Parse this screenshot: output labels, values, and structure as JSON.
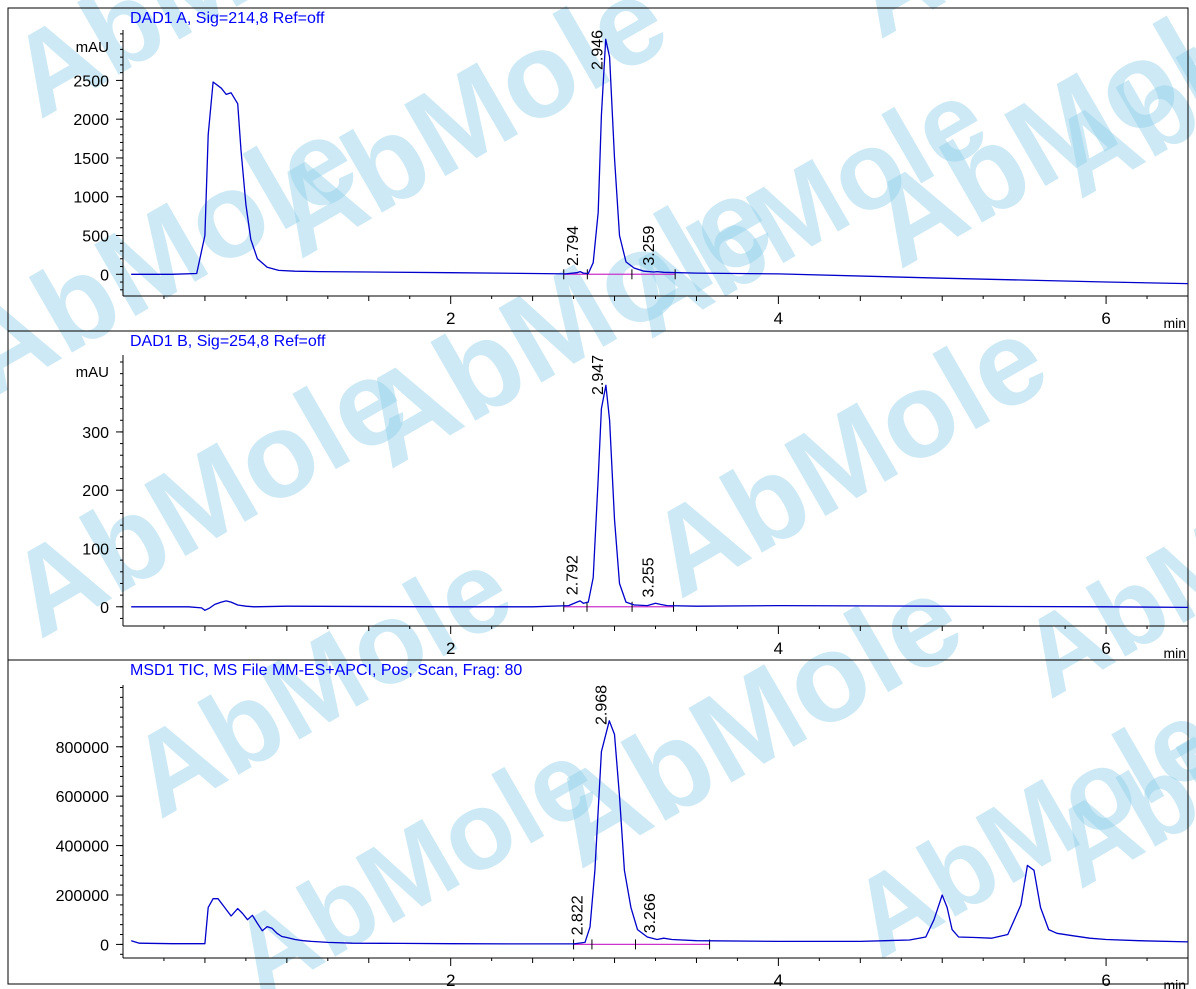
{
  "watermark": {
    "text": "AbMole",
    "color": "#8dcfe9",
    "accent": "#f7c66a"
  },
  "colors": {
    "trace": "#0000cc",
    "baseline": "#cc33cc",
    "axis": "#000000",
    "title": "#0000ff"
  },
  "chart_data": [
    {
      "type": "line",
      "title": "DAD1 A, Sig=214,8 Ref=off",
      "ylabel": "mAU",
      "xlabel": "min",
      "xlim": [
        0.0,
        6.5
      ],
      "ylim": [
        -280,
        3150
      ],
      "yticks": [
        0,
        500,
        1000,
        1500,
        2000,
        2500
      ],
      "ytick_labels": [
        "0",
        "500",
        "1000",
        "1500",
        "2000",
        "2500"
      ],
      "xticks": [
        2,
        4,
        6
      ],
      "xtick_labels": [
        "2",
        "4",
        "6"
      ],
      "series": [
        {
          "x": [
            0.05,
            0.3,
            0.45,
            0.5,
            0.52,
            0.55,
            0.6,
            0.63,
            0.66,
            0.7,
            0.72,
            0.75,
            0.78,
            0.82,
            0.88,
            0.95,
            1.05,
            1.2,
            1.5,
            2.0,
            2.5,
            2.7,
            2.77,
            2.79,
            2.81,
            2.84,
            2.87,
            2.9,
            2.92,
            2.946,
            2.97,
            3.0,
            3.03,
            3.07,
            3.12,
            3.18,
            3.24,
            3.26,
            3.3,
            3.5,
            4.0,
            5.0,
            6.0,
            6.5
          ],
          "y": [
            0,
            0,
            10,
            500,
            1800,
            2480,
            2400,
            2320,
            2340,
            2200,
            1600,
            900,
            450,
            200,
            90,
            50,
            40,
            35,
            30,
            20,
            10,
            5,
            20,
            35,
            15,
            10,
            150,
            800,
            2050,
            3030,
            2800,
            1500,
            500,
            160,
            80,
            40,
            30,
            35,
            25,
            15,
            5,
            -50,
            -100,
            -120
          ]
        }
      ],
      "peak_labels": [
        {
          "x": 2.794,
          "label": "2.794"
        },
        {
          "x": 2.946,
          "label": "2.946"
        },
        {
          "x": 3.259,
          "label": "3.259"
        }
      ],
      "baseline_segment": [
        2.69,
        3.37
      ]
    },
    {
      "type": "line",
      "title": "DAD1 B, Sig=254,8 Ref=off",
      "ylabel": "mAU",
      "xlabel": "min",
      "xlim": [
        0.0,
        6.5
      ],
      "ylim": [
        -33,
        432
      ],
      "yticks": [
        0,
        100,
        200,
        300
      ],
      "ytick_labels": [
        "0",
        "100",
        "200",
        "300"
      ],
      "xticks": [
        2,
        4,
        6
      ],
      "xtick_labels": [
        "2",
        "4",
        "6"
      ],
      "series": [
        {
          "x": [
            0.05,
            0.4,
            0.48,
            0.5,
            0.53,
            0.56,
            0.6,
            0.63,
            0.66,
            0.7,
            0.75,
            0.8,
            1.0,
            2.0,
            2.5,
            2.72,
            2.77,
            2.79,
            2.81,
            2.84,
            2.87,
            2.9,
            2.92,
            2.947,
            2.97,
            3.0,
            3.03,
            3.07,
            3.12,
            3.2,
            3.25,
            3.28,
            3.32,
            3.5,
            4.0,
            5.0,
            6.0,
            6.5
          ],
          "y": [
            0,
            0,
            -2,
            -6,
            -2,
            4,
            8,
            10,
            8,
            3,
            1,
            0,
            1,
            0,
            0,
            2,
            8,
            10,
            6,
            8,
            50,
            220,
            340,
            380,
            320,
            150,
            40,
            8,
            3,
            2,
            6,
            4,
            2,
            1,
            2,
            1,
            0,
            -1
          ]
        }
      ],
      "peak_labels": [
        {
          "x": 2.792,
          "label": "2.792"
        },
        {
          "x": 2.947,
          "label": "2.947"
        },
        {
          "x": 3.255,
          "label": "3.255"
        }
      ],
      "baseline_segment": [
        2.69,
        3.36
      ]
    },
    {
      "type": "line",
      "title": "MSD1 TIC, MS File   MM-ES+APCI, Pos, Scan, Frag: 80",
      "ylabel": "",
      "xlabel": "min",
      "xlim": [
        0.0,
        6.5
      ],
      "ylim": [
        -55000,
        1050000
      ],
      "yticks": [
        0,
        200000,
        400000,
        600000,
        800000
      ],
      "ytick_labels": [
        "0",
        "200000",
        "400000",
        "600000",
        "800000"
      ],
      "xticks": [
        2,
        4,
        6
      ],
      "xtick_labels": [
        "2",
        "4",
        "6"
      ],
      "series": [
        {
          "x": [
            0.05,
            0.1,
            0.3,
            0.5,
            0.52,
            0.55,
            0.58,
            0.62,
            0.66,
            0.7,
            0.73,
            0.76,
            0.79,
            0.82,
            0.85,
            0.88,
            0.91,
            0.94,
            0.97,
            1.0,
            1.05,
            1.1,
            1.15,
            1.25,
            1.4,
            1.7,
            2.0,
            2.5,
            2.75,
            2.82,
            2.85,
            2.88,
            2.92,
            2.968,
            3.0,
            3.03,
            3.06,
            3.1,
            3.14,
            3.2,
            3.26,
            3.3,
            3.35,
            3.5,
            4.0,
            4.5,
            4.8,
            4.9,
            4.95,
            5.0,
            5.03,
            5.06,
            5.1,
            5.2,
            5.3,
            5.4,
            5.48,
            5.52,
            5.56,
            5.6,
            5.65,
            5.7,
            5.8,
            5.9,
            6.0,
            6.2,
            6.5
          ],
          "y": [
            15000,
            5000,
            3000,
            3000,
            150000,
            185000,
            185000,
            150000,
            115000,
            145000,
            125000,
            100000,
            118000,
            85000,
            55000,
            72000,
            65000,
            45000,
            32000,
            28000,
            20000,
            15000,
            12000,
            8000,
            5000,
            4000,
            3000,
            2000,
            2000,
            8000,
            70000,
            300000,
            780000,
            905000,
            850000,
            600000,
            300000,
            150000,
            60000,
            30000,
            20000,
            25000,
            20000,
            15000,
            12000,
            12000,
            18000,
            30000,
            100000,
            200000,
            150000,
            60000,
            30000,
            28000,
            25000,
            40000,
            160000,
            320000,
            300000,
            150000,
            60000,
            45000,
            35000,
            25000,
            20000,
            15000,
            10000
          ]
        }
      ],
      "peak_labels": [
        {
          "x": 2.822,
          "label": "2.822"
        },
        {
          "x": 2.968,
          "label": "2.968"
        },
        {
          "x": 3.266,
          "label": "3.266"
        }
      ],
      "baseline_segment": [
        2.75,
        3.58
      ]
    }
  ]
}
